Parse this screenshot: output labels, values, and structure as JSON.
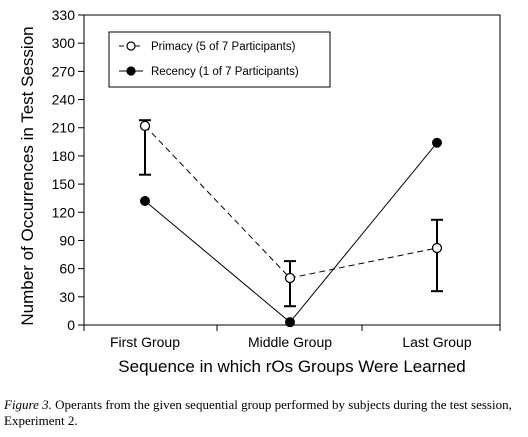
{
  "chart_data": {
    "type": "line",
    "xlabel": "Sequence in which rOs Groups Were Learned",
    "ylabel": "Number of Occurrences in Test Session",
    "categories": [
      "First Group",
      "Middle Group",
      "Last Group"
    ],
    "ylim": [
      0,
      330
    ],
    "yticks": [
      0,
      30,
      60,
      90,
      120,
      150,
      180,
      210,
      240,
      270,
      300,
      330
    ],
    "grid": false,
    "legend_position": "top-left",
    "series": [
      {
        "name": "Primacy (5 of 7 Participants)",
        "values": [
          212,
          50,
          82
        ],
        "error_low": [
          160,
          20,
          36
        ],
        "error_high": [
          218,
          68,
          112
        ],
        "marker": "open-circle",
        "line": "dashed"
      },
      {
        "name": "Recency (1 of 7 Participants)",
        "values": [
          132,
          3,
          194
        ],
        "marker": "filled-circle",
        "line": "solid"
      }
    ]
  },
  "caption": {
    "label": "Figure 3.",
    "text": " Operants from the given sequential group performed by subjects during the test session, Experiment 2."
  }
}
